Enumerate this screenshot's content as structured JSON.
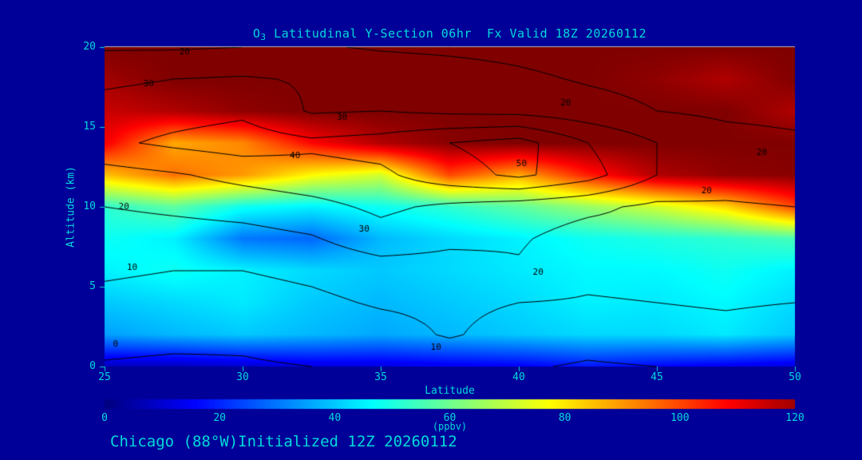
{
  "title": {
    "prefix": "O",
    "subscript": "3",
    "rest": " Latitudinal Y-Section 06hr  Fx Valid 18Z 20260112"
  },
  "caption": "Chicago (88°W)Initialized 12Z 20260112",
  "colors": {
    "background": "#000099",
    "text": "#00D9D9",
    "contour_line": "#000000",
    "frame": "#BBBBBB",
    "fill_min": "#000080",
    "fill_max": "#800000"
  },
  "chart_data": {
    "type": "heatmap",
    "subtype": "filled-contour-latitude-altitude-cross-section",
    "title": "O3 Latitudinal Y-Section 06hr  Fx Valid 18Z 20260112",
    "xlabel": "Latitude",
    "ylabel": "Altitude (km)",
    "xlim": [
      25,
      50
    ],
    "ylim": [
      0,
      20
    ],
    "x_ticks": [
      25,
      30,
      35,
      40,
      45,
      50
    ],
    "y_ticks": [
      0,
      5,
      10,
      15,
      20
    ],
    "grid": false,
    "colorbar": {
      "label": "(ppbv)",
      "ticks": [
        0,
        20,
        40,
        60,
        80,
        100,
        120
      ],
      "min": 0,
      "max": 120,
      "colormap": "jet"
    },
    "field": {
      "units": "ppbv",
      "lats": [
        25,
        27.5,
        30,
        32.5,
        35,
        37.5,
        40,
        42.5,
        45,
        47.5,
        50
      ],
      "alts": [
        0,
        2,
        4,
        6,
        8,
        10,
        12,
        14,
        16,
        18,
        20
      ],
      "values": [
        [
          8,
          8,
          10,
          12,
          12,
          14,
          15,
          18,
          16,
          14,
          12
        ],
        [
          35,
          38,
          40,
          38,
          36,
          38,
          40,
          42,
          42,
          44,
          40
        ],
        [
          40,
          42,
          44,
          40,
          38,
          40,
          42,
          45,
          44,
          46,
          42
        ],
        [
          45,
          48,
          45,
          42,
          40,
          42,
          44,
          46,
          46,
          48,
          45
        ],
        [
          48,
          45,
          30,
          28,
          38,
          42,
          45,
          48,
          50,
          52,
          55
        ],
        [
          52,
          58,
          48,
          45,
          48,
          52,
          58,
          65,
          72,
          82,
          100
        ],
        [
          85,
          95,
          90,
          78,
          72,
          100,
          88,
          105,
          118,
          122,
          123
        ],
        [
          110,
          88,
          92,
          108,
          118,
          123,
          124,
          124,
          124,
          124,
          124
        ],
        [
          115,
          118,
          122,
          124,
          124,
          124,
          124,
          124,
          124,
          124,
          118
        ],
        [
          120,
          124,
          124,
          124,
          124,
          124,
          124,
          124,
          122,
          118,
          124
        ],
        [
          124,
          124,
          124,
          124,
          124,
          124,
          124,
          124,
          124,
          124,
          124
        ]
      ]
    },
    "contours": {
      "levels": [
        0,
        10,
        20,
        30,
        40,
        50
      ],
      "values": [
        [
          -1,
          -2,
          -1,
          0,
          1,
          2,
          1,
          -1,
          0,
          1,
          0
        ],
        [
          4,
          3,
          2,
          4,
          6,
          11,
          6,
          4,
          6,
          7,
          5
        ],
        [
          8,
          7,
          6,
          8,
          11,
          12,
          10,
          9,
          10,
          11,
          10
        ],
        [
          11,
          10,
          10,
          12,
          15,
          16,
          19,
          13,
          14,
          15,
          14
        ],
        [
          14,
          15,
          16,
          19,
          26,
          22,
          21,
          16,
          17,
          18,
          17
        ],
        [
          20,
          22,
          24,
          27,
          32,
          28,
          25,
          22,
          18,
          19,
          20
        ],
        [
          26,
          29,
          33,
          36,
          38,
          46,
          52,
          44,
          30,
          24,
          25
        ],
        [
          38,
          42,
          45,
          42,
          44,
          50,
          54,
          40,
          30,
          24,
          22
        ],
        [
          34,
          36,
          38,
          29,
          30,
          28,
          27,
          24,
          20,
          18,
          17
        ],
        [
          28,
          30,
          31,
          29,
          27,
          25,
          22,
          19,
          17,
          16,
          15
        ],
        [
          19,
          19,
          20,
          21,
          19,
          18,
          17,
          15,
          14,
          13,
          12
        ]
      ],
      "labels": [
        {
          "value": 20,
          "lat": 27.9,
          "alt": 19.7
        },
        {
          "value": 30,
          "lat": 26.6,
          "alt": 17.7
        },
        {
          "value": 30,
          "lat": 33.6,
          "alt": 15.6
        },
        {
          "value": 20,
          "lat": 41.7,
          "alt": 16.5
        },
        {
          "value": 40,
          "lat": 31.9,
          "alt": 13.2
        },
        {
          "value": 50,
          "lat": 40.1,
          "alt": 12.7
        },
        {
          "value": 20,
          "lat": 48.8,
          "alt": 13.4
        },
        {
          "value": 20,
          "lat": 46.8,
          "alt": 11.0
        },
        {
          "value": 20,
          "lat": 25.7,
          "alt": 10.0
        },
        {
          "value": 30,
          "lat": 34.4,
          "alt": 8.6
        },
        {
          "value": 20,
          "lat": 40.7,
          "alt": 5.9
        },
        {
          "value": 10,
          "lat": 26.0,
          "alt": 6.2
        },
        {
          "value": 0,
          "lat": 25.4,
          "alt": 1.4
        },
        {
          "value": 10,
          "lat": 37.0,
          "alt": 1.2
        }
      ]
    }
  }
}
